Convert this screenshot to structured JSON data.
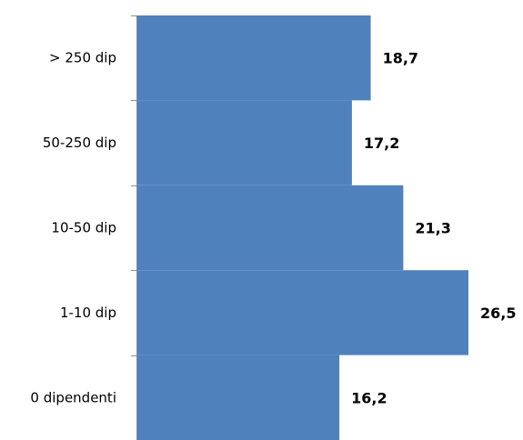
{
  "chart_data": {
    "type": "bar",
    "orientation": "horizontal",
    "categories": [
      "> 250 dip",
      "50-250 dip",
      "10-50 dip",
      "1-10 dip",
      "0 dipendenti"
    ],
    "values": [
      18.7,
      17.2,
      21.3,
      26.5,
      16.2
    ],
    "value_labels": [
      "18,7",
      "17,2",
      "21,3",
      "26,5",
      "16,2"
    ],
    "title": "",
    "xlabel": "",
    "ylabel": "",
    "xlim": [
      0,
      26.5
    ],
    "grid": false,
    "legend": "none",
    "bar_color": "#4f81bd"
  }
}
